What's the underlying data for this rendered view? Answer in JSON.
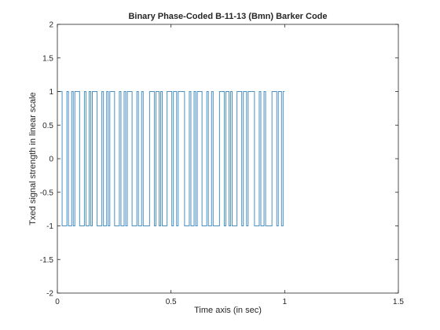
{
  "figure": {
    "title": "Binary Phase-Coded B-11-13 (Bmn) Barker Code",
    "xlabel": "Time axis (in sec)",
    "ylabel": "Txed signal strength in linear scale"
  },
  "chart_data": {
    "type": "line",
    "title": "Binary Phase-Coded B-11-13 (Bmn) Barker Code",
    "xlabel": "Time axis (in sec)",
    "ylabel": "Txed signal strength in linear scale",
    "xlim": [
      0,
      1.5
    ],
    "ylim": [
      -2,
      2
    ],
    "xticks": [
      0,
      0.5,
      1,
      1.5
    ],
    "xtick_labels": [
      "0",
      "0.5",
      "1",
      "1.5"
    ],
    "yticks": [
      -2,
      -1.5,
      -1,
      -0.5,
      0,
      0.5,
      1,
      1.5,
      2
    ],
    "ytick_labels": [
      "-2",
      "-1.5",
      "-1",
      "-0.5",
      "0",
      "0.5",
      "1",
      "1.5",
      "2"
    ],
    "grid": false,
    "series": [
      {
        "color": "#4a90c2",
        "x_start": 0,
        "x_end": 1,
        "chip_values": [
          1,
          1,
          1,
          -1,
          -1,
          -1,
          1,
          -1,
          -1,
          1,
          -1,
          1,
          1,
          1,
          -1,
          -1,
          -1,
          1,
          -1,
          -1,
          1,
          -1,
          1,
          1,
          1,
          -1,
          -1,
          -1,
          1,
          -1,
          -1,
          1,
          -1,
          1,
          1,
          1,
          -1,
          -1,
          -1,
          1,
          -1,
          -1,
          1,
          -1,
          1,
          1,
          1,
          -1,
          -1,
          -1,
          1,
          -1,
          -1,
          1,
          -1,
          -1,
          -1,
          -1,
          1,
          1,
          1,
          -1,
          1,
          1,
          -1,
          1,
          -1,
          -1,
          -1,
          1,
          1,
          1,
          -1,
          1,
          1,
          -1,
          1,
          1,
          1,
          1,
          -1,
          -1,
          -1,
          1,
          -1,
          -1,
          1,
          -1,
          1,
          1,
          1,
          -1,
          -1,
          -1,
          1,
          -1,
          -1,
          1,
          -1,
          -1,
          -1,
          -1,
          1,
          1,
          1,
          -1,
          1,
          1,
          -1,
          1,
          -1,
          -1,
          -1,
          1,
          1,
          1,
          -1,
          1,
          1,
          -1,
          1,
          1,
          1,
          1,
          -1,
          -1,
          -1,
          1,
          -1,
          -1,
          1,
          -1,
          -1,
          -1,
          -1,
          1,
          1,
          1,
          -1,
          1,
          1,
          -1,
          1
        ]
      }
    ]
  }
}
